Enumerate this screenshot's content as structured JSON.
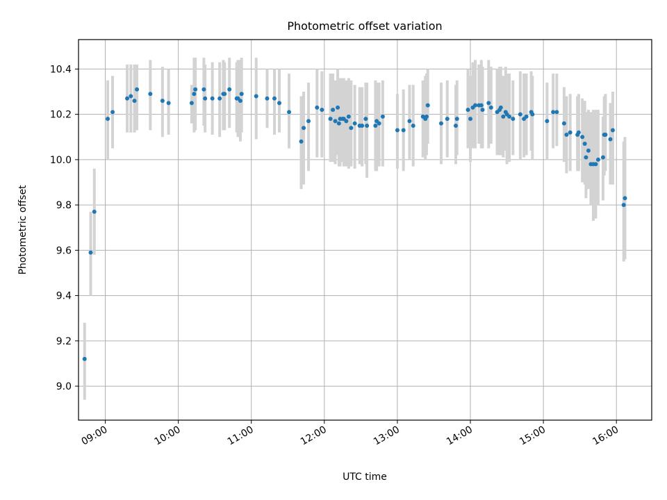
{
  "chart_data": {
    "type": "scatter",
    "title": "Photometric offset variation",
    "xlabel": "UTC time",
    "ylabel": "Photometric offset",
    "grid": true,
    "xlim": [
      "08:38",
      "16:29"
    ],
    "ylim": [
      8.85,
      10.53
    ],
    "x_ticks": [
      "09:00",
      "10:00",
      "11:00",
      "12:00",
      "13:00",
      "14:00",
      "15:00",
      "16:00"
    ],
    "y_ticks": [
      9.0,
      9.2,
      9.4,
      9.6,
      9.8,
      10.0,
      10.2,
      10.4
    ],
    "colors": {
      "points": "#1f77b4",
      "errorbars": "#d3d3d3",
      "grid": "#b0b0b0"
    },
    "series": [
      {
        "x": [
          "08:43",
          "08:48",
          "08:51",
          "09:02",
          "09:06",
          "09:18",
          "09:21",
          "09:24",
          "09:26",
          "09:37",
          "09:47",
          "09:52",
          "10:11",
          "10:13",
          "10:14",
          "10:21",
          "10:22",
          "10:28",
          "10:34",
          "10:37",
          "10:38",
          "10:42",
          "10:48",
          "10:49",
          "10:51",
          "10:52",
          "11:04",
          "11:13",
          "11:19",
          "11:23",
          "11:31",
          "11:41",
          "11:43",
          "11:47",
          "11:54",
          "11:58",
          "12:05",
          "12:07",
          "12:09",
          "12:11",
          "12:12",
          "12:13",
          "12:15",
          "12:16",
          "12:18",
          "12:20",
          "12:22",
          "12:25",
          "12:29",
          "12:31",
          "12:34",
          "12:35",
          "12:42",
          "12:43",
          "12:45",
          "12:48",
          "13:00",
          "13:05",
          "13:10",
          "13:13",
          "13:21",
          "13:23",
          "13:24",
          "13:25",
          "13:36",
          "13:41",
          "13:48",
          "13:49",
          "13:58",
          "14:00",
          "14:02",
          "14:04",
          "14:07",
          "14:09",
          "14:10",
          "14:15",
          "14:17",
          "14:22",
          "14:24",
          "14:25",
          "14:27",
          "14:29",
          "14:30",
          "14:32",
          "14:35",
          "14:41",
          "14:44",
          "14:46",
          "14:50",
          "14:51",
          "15:03",
          "15:08",
          "15:11",
          "15:17",
          "15:19",
          "15:22",
          "15:28",
          "15:29",
          "15:32",
          "15:34",
          "15:35",
          "15:37",
          "15:39",
          "15:41",
          "15:43",
          "15:45",
          "15:49",
          "15:50",
          "15:51",
          "15:55",
          "15:57",
          "16:06",
          "16:07"
        ],
        "y": [
          9.12,
          9.59,
          9.77,
          10.18,
          10.21,
          10.27,
          10.28,
          10.26,
          10.31,
          10.29,
          10.26,
          10.25,
          10.25,
          10.29,
          10.31,
          10.31,
          10.27,
          10.27,
          10.27,
          10.29,
          10.29,
          10.31,
          10.27,
          10.27,
          10.26,
          10.29,
          10.28,
          10.27,
          10.27,
          10.25,
          10.21,
          10.08,
          10.14,
          10.17,
          10.23,
          10.22,
          10.18,
          10.22,
          10.17,
          10.23,
          10.16,
          10.18,
          10.18,
          10.18,
          10.17,
          10.19,
          10.14,
          10.16,
          10.15,
          10.15,
          10.18,
          10.15,
          10.15,
          10.17,
          10.16,
          10.19,
          10.13,
          10.13,
          10.17,
          10.15,
          10.19,
          10.18,
          10.19,
          10.24,
          10.16,
          10.18,
          10.15,
          10.18,
          10.22,
          10.18,
          10.23,
          10.24,
          10.24,
          10.24,
          10.22,
          10.25,
          10.23,
          10.21,
          10.22,
          10.23,
          10.19,
          10.21,
          10.2,
          10.19,
          10.18,
          10.2,
          10.18,
          10.19,
          10.21,
          10.2,
          10.17,
          10.21,
          10.21,
          10.16,
          10.11,
          10.12,
          10.11,
          10.12,
          10.1,
          10.07,
          10.01,
          10.04,
          9.98,
          9.98,
          9.98,
          10.0,
          10.01,
          10.11,
          10.11,
          10.09,
          10.13,
          9.8,
          9.83
        ],
        "err_low": [
          8.94,
          9.4,
          9.58,
          10.0,
          10.05,
          10.12,
          10.12,
          10.12,
          10.13,
          10.13,
          10.1,
          10.11,
          10.16,
          10.12,
          10.13,
          10.15,
          10.12,
          10.11,
          10.1,
          10.13,
          10.13,
          10.14,
          10.12,
          10.1,
          10.08,
          10.12,
          10.09,
          10.14,
          10.11,
          10.12,
          10.05,
          9.87,
          9.89,
          9.95,
          10.01,
          10.01,
          9.99,
          9.99,
          9.98,
          10.02,
          9.97,
          9.97,
          9.99,
          9.97,
          9.97,
          9.96,
          9.97,
          9.96,
          9.98,
          9.97,
          9.98,
          9.92,
          9.95,
          9.95,
          9.97,
          9.97,
          9.96,
          9.95,
          10.0,
          9.97,
          10.01,
          10.0,
          10.02,
          10.07,
          9.98,
          10.01,
          9.98,
          10.02,
          10.05,
          9.99,
          10.05,
          10.05,
          10.07,
          10.05,
          10.05,
          10.05,
          10.07,
          10.02,
          10.02,
          10.02,
          10.01,
          10.04,
          9.98,
          9.99,
          10.02,
          10.0,
          10.01,
          10.02,
          10.04,
          10.0,
          10.0,
          10.05,
          10.06,
          9.99,
          9.94,
          9.95,
          9.95,
          9.95,
          9.9,
          9.89,
          9.83,
          9.87,
          9.8,
          9.73,
          9.74,
          9.8,
          9.82,
          9.93,
          9.95,
          9.89,
          9.89,
          9.55,
          9.56
        ],
        "err_high": [
          9.28,
          9.77,
          9.96,
          10.35,
          10.37,
          10.42,
          10.42,
          10.42,
          10.42,
          10.44,
          10.41,
          10.4,
          10.33,
          10.45,
          10.45,
          10.45,
          10.42,
          10.43,
          10.43,
          10.44,
          10.43,
          10.45,
          10.43,
          10.44,
          10.44,
          10.45,
          10.45,
          10.4,
          10.4,
          10.4,
          10.38,
          10.28,
          10.3,
          10.34,
          10.4,
          10.39,
          10.38,
          10.38,
          10.35,
          10.4,
          10.35,
          10.36,
          10.36,
          10.36,
          10.35,
          10.36,
          10.35,
          10.33,
          10.32,
          10.32,
          10.34,
          10.34,
          10.35,
          10.34,
          10.34,
          10.35,
          10.29,
          10.31,
          10.33,
          10.33,
          10.35,
          10.37,
          10.38,
          10.4,
          10.34,
          10.35,
          10.33,
          10.35,
          10.4,
          10.37,
          10.43,
          10.44,
          10.42,
          10.44,
          10.41,
          10.44,
          10.41,
          10.4,
          10.41,
          10.41,
          10.37,
          10.41,
          10.38,
          10.38,
          10.35,
          10.39,
          10.38,
          10.38,
          10.39,
          10.37,
          10.34,
          10.38,
          10.38,
          10.32,
          10.28,
          10.29,
          10.28,
          10.29,
          10.27,
          10.26,
          10.21,
          10.22,
          10.21,
          10.22,
          10.22,
          10.22,
          10.19,
          10.28,
          10.29,
          10.25,
          10.3,
          10.08,
          10.1
        ]
      }
    ]
  }
}
